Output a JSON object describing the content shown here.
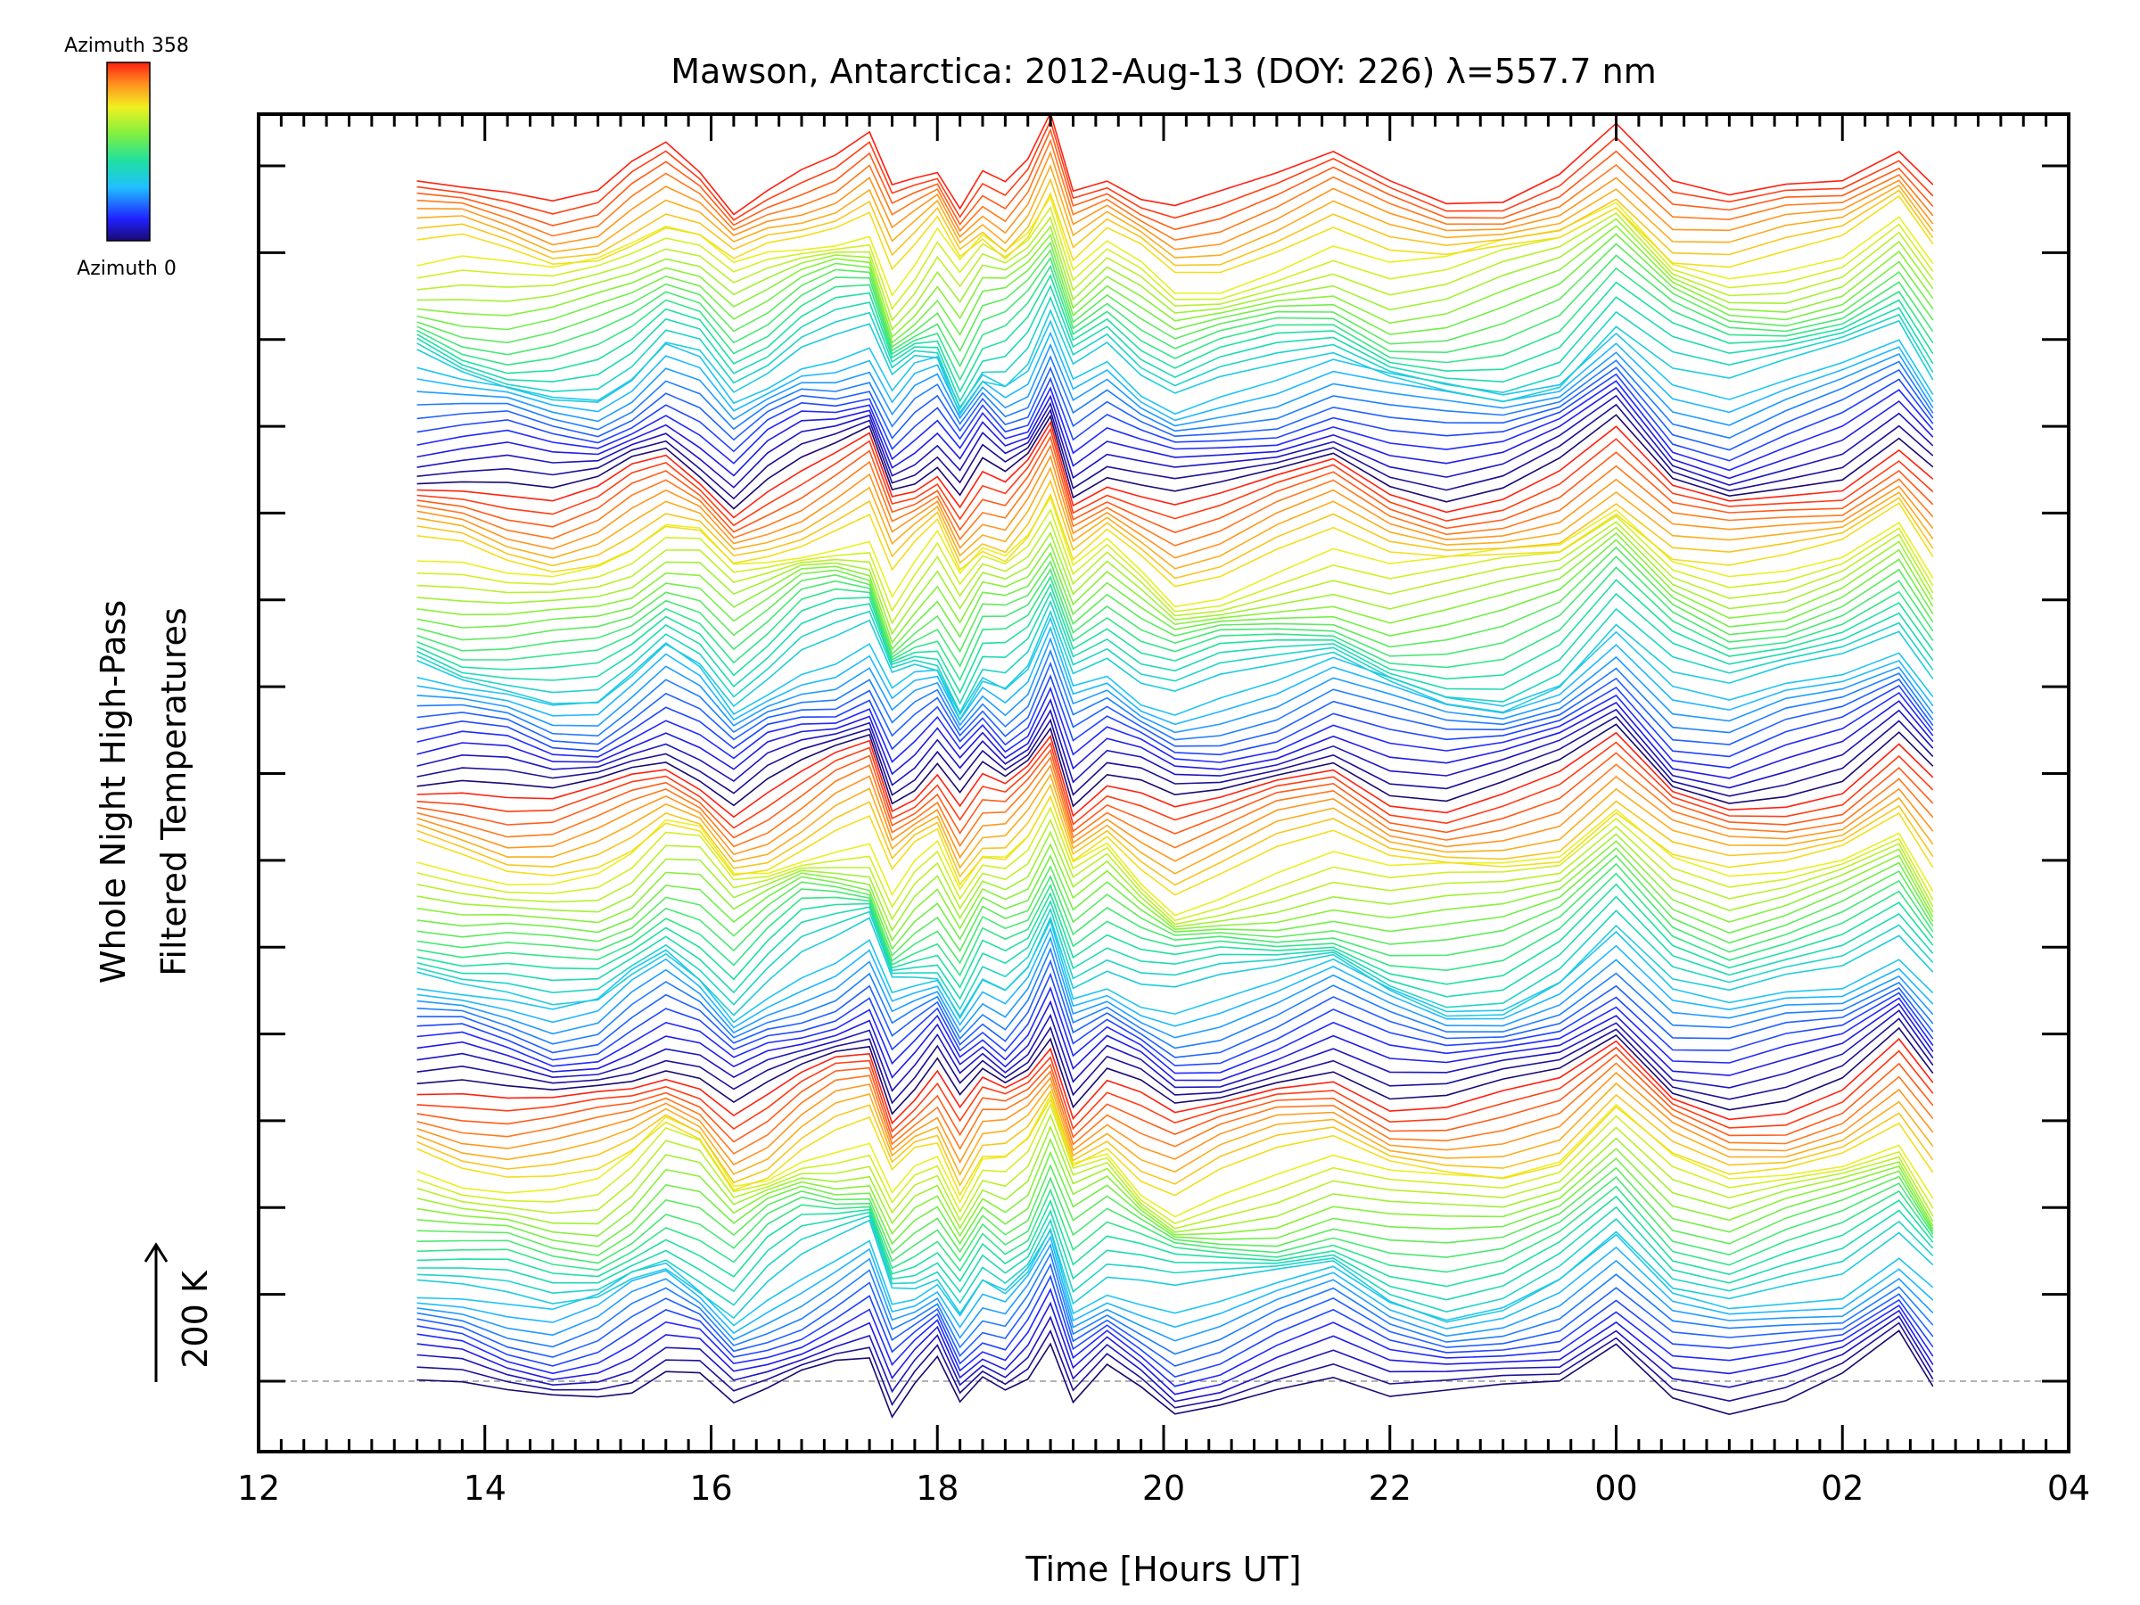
{
  "chart_data": {
    "type": "line",
    "title": "Mawson, Antarctica: 2012-Aug-13 (DOY: 226) λ=557.7 nm",
    "xlabel": "Time [Hours UT]",
    "ylabel_line1": "Whole Night High-Pass",
    "ylabel_line2": "Filtered Temperatures",
    "x_ticks": [
      "12",
      "14",
      "16",
      "18",
      "20",
      "22",
      "00",
      "02",
      "04"
    ],
    "xlim": [
      12,
      28
    ],
    "scale_label": "200 K",
    "colorbar": {
      "top_label": "Azimuth 358",
      "bottom_label": "Azimuth 0",
      "azimuth_range": [
        0,
        358
      ]
    },
    "n_series": 128,
    "series_stack": "stacked traces, one per azimuth, color-coded by azimuth, cycling four times",
    "time_hours": [
      13.4,
      13.8,
      14.2,
      14.6,
      15.0,
      15.3,
      15.6,
      15.9,
      16.2,
      16.5,
      16.8,
      17.1,
      17.4,
      17.6,
      17.8,
      18.0,
      18.2,
      18.4,
      18.6,
      18.8,
      19.0,
      19.2,
      19.5,
      19.8,
      20.1,
      20.5,
      21.0,
      21.5,
      22.0,
      22.5,
      23.0,
      23.5,
      24.0,
      24.5,
      25.0,
      25.5,
      26.0,
      26.5,
      26.8
    ],
    "base_anomaly": [
      40,
      35,
      28,
      20,
      25,
      45,
      70,
      50,
      5,
      30,
      55,
      70,
      85,
      15,
      40,
      60,
      10,
      50,
      35,
      55,
      105,
      20,
      50,
      25,
      5,
      20,
      40,
      60,
      30,
      20,
      25,
      45,
      100,
      30,
      10,
      25,
      45,
      90,
      35
    ]
  }
}
